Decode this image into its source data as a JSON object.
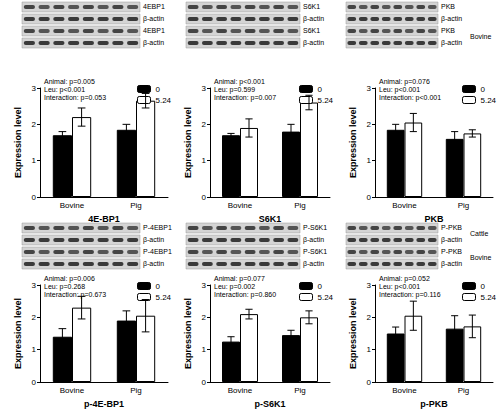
{
  "chart_data": [
    {
      "type": "bar",
      "xlabel": "4E-BP1",
      "ylabel": "Expression level",
      "categories": [
        "Bovine",
        "Pig"
      ],
      "series": [
        {
          "name": "0",
          "color": "#000000",
          "values": [
            1.7,
            1.85
          ],
          "errors": [
            0.1,
            0.15
          ]
        },
        {
          "name": "5.24",
          "color": "#ffffff",
          "values": [
            2.2,
            2.65
          ],
          "errors": [
            0.25,
            0.2
          ]
        }
      ],
      "ylim": [
        0,
        3
      ],
      "yticks": [
        0,
        1,
        2,
        3
      ],
      "grid": false,
      "legend": "upper right",
      "annotations": [
        "Animal: p=0.005",
        "Leu: p<0.001",
        "Interaction: p=0.053"
      ],
      "blot_labels": [
        "4EBP1",
        "β-actin",
        "4EBP1",
        "β-actin"
      ],
      "blot_group_labels": [
        null,
        null
      ]
    },
    {
      "type": "bar",
      "xlabel": "S6K1",
      "ylabel": "Expression level",
      "categories": [
        "Bovine",
        "Pig"
      ],
      "series": [
        {
          "name": "0",
          "color": "#000000",
          "values": [
            1.7,
            1.8
          ],
          "errors": [
            0.05,
            0.2
          ]
        },
        {
          "name": "5.24",
          "color": "#ffffff",
          "values": [
            1.9,
            2.6
          ],
          "errors": [
            0.25,
            0.2
          ]
        }
      ],
      "ylim": [
        0,
        3
      ],
      "yticks": [
        0,
        1,
        2,
        3
      ],
      "grid": false,
      "legend": "upper right",
      "annotations": [
        "Animal: p<0.001",
        "Leu: p=0.599",
        "Interaction: p=0.007"
      ],
      "blot_labels": [
        "S6K1",
        "β-actin",
        "S6K1",
        "β-actin"
      ],
      "blot_group_labels": [
        null,
        null
      ]
    },
    {
      "type": "bar",
      "xlabel": "PKB",
      "ylabel": "Expression level",
      "categories": [
        "Bovine",
        "Pig"
      ],
      "series": [
        {
          "name": "0",
          "color": "#000000",
          "values": [
            1.85,
            1.6
          ],
          "errors": [
            0.15,
            0.2
          ]
        },
        {
          "name": "5.24",
          "color": "#ffffff",
          "values": [
            2.05,
            1.75
          ],
          "errors": [
            0.25,
            0.1
          ]
        }
      ],
      "ylim": [
        0,
        3
      ],
      "yticks": [
        0,
        1,
        2,
        3
      ],
      "grid": false,
      "legend": "upper right",
      "annotations": [
        "Animal: p=0.076",
        "Leu: p<0.001",
        "Interaction: p<0.001"
      ],
      "blot_labels": [
        "PKB",
        "β-actin",
        "PKB",
        "β-actin"
      ],
      "blot_group_labels": [
        null,
        "Bovine"
      ]
    },
    {
      "type": "bar",
      "xlabel": "p-4E-BP1",
      "ylabel": "Expression level",
      "categories": [
        "Bovine",
        "Pig"
      ],
      "series": [
        {
          "name": "0",
          "color": "#000000",
          "values": [
            1.4,
            1.9
          ],
          "errors": [
            0.25,
            0.3
          ]
        },
        {
          "name": "5.24",
          "color": "#ffffff",
          "values": [
            2.3,
            2.05
          ],
          "errors": [
            0.35,
            0.5
          ]
        }
      ],
      "ylim": [
        0,
        3
      ],
      "yticks": [
        0,
        1,
        2,
        3
      ],
      "grid": false,
      "legend": "upper right",
      "annotations": [
        "Animal: p=0.006",
        "Leu: p=0.268",
        "Interaction: p=0.673"
      ],
      "blot_labels": [
        "P-4EBP1",
        "β-actin",
        "P-4EBP1",
        "β-actin"
      ],
      "blot_group_labels": [
        null,
        null
      ]
    },
    {
      "type": "bar",
      "xlabel": "p-S6K1",
      "ylabel": "Expression level",
      "categories": [
        "Bovine",
        "Pig"
      ],
      "series": [
        {
          "name": "0",
          "color": "#000000",
          "values": [
            1.25,
            1.45
          ],
          "errors": [
            0.15,
            0.15
          ]
        },
        {
          "name": "5.24",
          "color": "#ffffff",
          "values": [
            2.1,
            2.0
          ],
          "errors": [
            0.15,
            0.2
          ]
        }
      ],
      "ylim": [
        0,
        3
      ],
      "yticks": [
        0,
        1,
        2,
        3
      ],
      "grid": false,
      "legend": "upper right",
      "annotations": [
        "Animal: p=0.077",
        "Leu: p=0.002",
        "Interaction: p=0.860"
      ],
      "blot_labels": [
        "P-S6K1",
        "β-actin",
        "P-S6K1",
        "β-actin"
      ],
      "blot_group_labels": [
        null,
        null
      ]
    },
    {
      "type": "bar",
      "xlabel": "p-PKB",
      "ylabel": "Expression level",
      "categories": [
        "Bovine",
        "Pig"
      ],
      "series": [
        {
          "name": "0",
          "color": "#000000",
          "values": [
            1.5,
            1.65
          ],
          "errors": [
            0.2,
            0.4
          ]
        },
        {
          "name": "5.24",
          "color": "#ffffff",
          "values": [
            2.05,
            1.72
          ],
          "errors": [
            0.45,
            0.35
          ]
        }
      ],
      "ylim": [
        0,
        3
      ],
      "yticks": [
        0,
        1,
        2,
        3
      ],
      "grid": false,
      "legend": "upper right",
      "annotations": [
        "Animal: p=0.052",
        "Leu: p<0.001",
        "Interaction: p=0.116"
      ],
      "blot_labels": [
        "P-PKB",
        "β-actin",
        "P-PKB",
        "β-actin"
      ],
      "blot_group_labels": [
        "Cattle",
        "Bovine"
      ]
    }
  ]
}
